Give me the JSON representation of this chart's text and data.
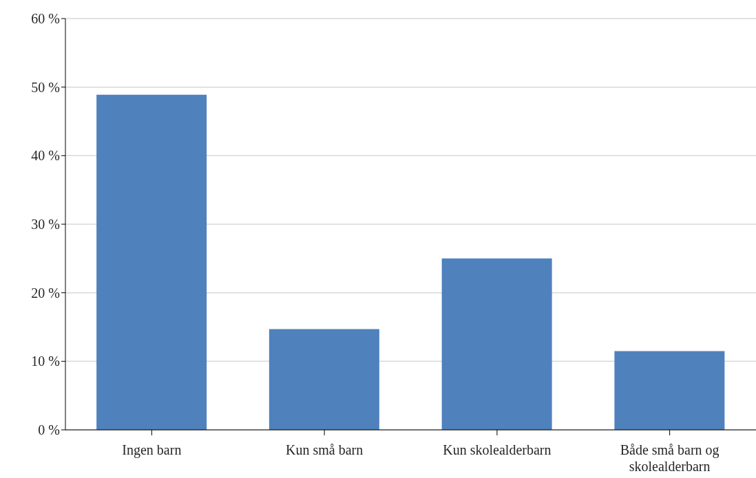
{
  "chart_data": {
    "type": "bar",
    "categories": [
      "Ingen barn",
      "Kun små barn",
      "Kun skolealderbarn",
      "Både små barn og skolealderbarn"
    ],
    "values": [
      48.9,
      14.7,
      25.0,
      11.5
    ],
    "color": "#4f81bd",
    "ylim": [
      0,
      60
    ],
    "yticks": [
      {
        "value": 0,
        "label": "0 %"
      },
      {
        "value": 10,
        "label": "10 %"
      },
      {
        "value": 20,
        "label": "20 %"
      },
      {
        "value": 30,
        "label": "30 %"
      },
      {
        "value": 40,
        "label": "40 %"
      },
      {
        "value": 50,
        "label": "50 %"
      },
      {
        "value": 60,
        "label": "60 %"
      }
    ],
    "grid": "y"
  }
}
